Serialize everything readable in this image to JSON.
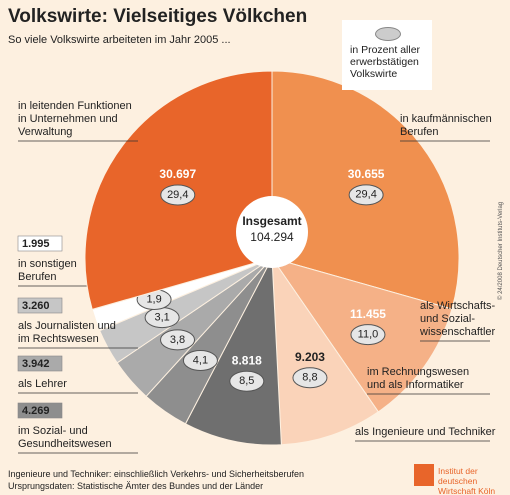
{
  "chart_data": {
    "type": "pie",
    "title": "Volkswirte: Vielseitiges Völkchen",
    "subtitle": "So viele Volkswirte arbeiteten im Jahr 2005 ...",
    "legend_note": "in Prozent aller\nerwerbstätigen\nVolkswirte",
    "total_label": "Insgesamt",
    "total": 104294,
    "total_value_label": "104.294",
    "categories": [
      "in kaufmännischen\nBerufen",
      "als Wirtschafts-\nund Sozial-\nwissenschaftler",
      "im Rechnungswesen\nund als Informatiker",
      "als Ingenieure und Techniker",
      "im Sozial- und\nGesundheitswesen",
      "als Lehrer",
      "als Journalisten und\nim Rechtswesen",
      "in sonstigen\nBerufen",
      "in leitenden Funktionen\nin Unternehmen und\nVerwaltung"
    ],
    "values": [
      30655,
      11455,
      9203,
      8818,
      4269,
      3942,
      3260,
      1995,
      30697
    ],
    "value_labels": [
      "30.655",
      "11.455",
      "9.203",
      "8.818",
      "4.269",
      "3.942",
      "3.260",
      "1.995",
      "30.697"
    ],
    "percent": [
      29.4,
      11.0,
      8.8,
      8.5,
      4.1,
      3.8,
      3.1,
      1.9,
      29.4
    ],
    "percent_labels": [
      "29,4",
      "11,0",
      "8,8",
      "8,5",
      "4,1",
      "3,8",
      "3,1",
      "1,9",
      "29,4"
    ],
    "colors": [
      "#f0904f",
      "#f5b187",
      "#fad3b9",
      "#6f6f6f",
      "#8e8e8e",
      "#aaaaaa",
      "#c6c6c6",
      "#ffffff",
      "#e8652a"
    ],
    "footnotes": [
      "Ingenieure und Techniker: einschließlich Verkehrs- und Sicherheitsberufen",
      "Ursprungsdaten: Statistische Ämter des Bundes und der Länder"
    ],
    "copyright": "© 24/2008 Deutscher Instituts-Verlag",
    "source_logo": "Institut der deutschen\nWirtschaft Köln"
  }
}
